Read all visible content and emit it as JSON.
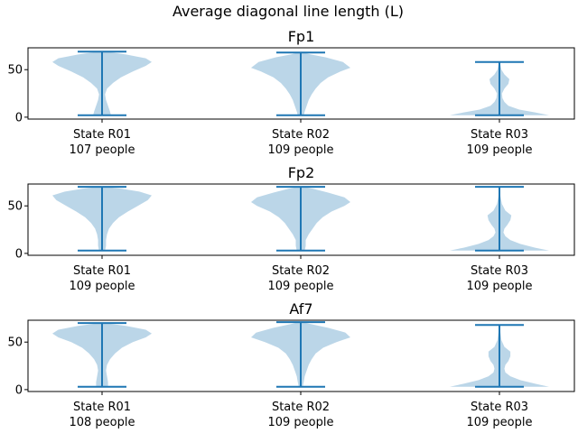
{
  "figure": {
    "title": "Average diagonal line length (L)"
  },
  "chart_data": [
    {
      "type": "violin",
      "title": "Fp1",
      "ylim": [
        -2,
        73
      ],
      "yticks": [
        0,
        50
      ],
      "categories": [
        {
          "line1": "State R01",
          "line2": "107 people",
          "min": 2,
          "max": 69,
          "density": [
            [
              2,
              0.18
            ],
            [
              6,
              0.16
            ],
            [
              12,
              0.12
            ],
            [
              18,
              0.08
            ],
            [
              24,
              0.06
            ],
            [
              30,
              0.1
            ],
            [
              36,
              0.22
            ],
            [
              42,
              0.38
            ],
            [
              48,
              0.62
            ],
            [
              54,
              0.88
            ],
            [
              58,
              1.0
            ],
            [
              62,
              0.88
            ],
            [
              66,
              0.48
            ],
            [
              69,
              0.08
            ]
          ]
        },
        {
          "line1": "State R02",
          "line2": "109 people",
          "min": 2,
          "max": 68,
          "density": [
            [
              2,
              0.06
            ],
            [
              6,
              0.08
            ],
            [
              12,
              0.12
            ],
            [
              18,
              0.16
            ],
            [
              24,
              0.22
            ],
            [
              30,
              0.3
            ],
            [
              36,
              0.4
            ],
            [
              42,
              0.55
            ],
            [
              48,
              0.8
            ],
            [
              52,
              1.0
            ],
            [
              58,
              0.85
            ],
            [
              63,
              0.5
            ],
            [
              66,
              0.2
            ],
            [
              68,
              0.05
            ]
          ]
        },
        {
          "line1": "State R03",
          "line2": "109 people",
          "min": 2,
          "max": 58,
          "density": [
            [
              2,
              1.0
            ],
            [
              5,
              0.72
            ],
            [
              8,
              0.4
            ],
            [
              12,
              0.18
            ],
            [
              16,
              0.1
            ],
            [
              20,
              0.06
            ],
            [
              25,
              0.05
            ],
            [
              30,
              0.1
            ],
            [
              35,
              0.18
            ],
            [
              40,
              0.2
            ],
            [
              45,
              0.1
            ],
            [
              50,
              0.04
            ],
            [
              55,
              0.02
            ],
            [
              58,
              0.01
            ]
          ]
        }
      ]
    },
    {
      "type": "violin",
      "title": "Fp2",
      "ylim": [
        -2,
        73
      ],
      "yticks": [
        0,
        50
      ],
      "categories": [
        {
          "line1": "State R01",
          "line2": "109 people",
          "min": 3,
          "max": 70,
          "density": [
            [
              3,
              0.06
            ],
            [
              8,
              0.08
            ],
            [
              14,
              0.08
            ],
            [
              20,
              0.1
            ],
            [
              26,
              0.14
            ],
            [
              32,
              0.22
            ],
            [
              38,
              0.34
            ],
            [
              44,
              0.52
            ],
            [
              50,
              0.72
            ],
            [
              56,
              0.92
            ],
            [
              61,
              1.0
            ],
            [
              65,
              0.75
            ],
            [
              68,
              0.4
            ],
            [
              70,
              0.08
            ]
          ]
        },
        {
          "line1": "State R02",
          "line2": "109 people",
          "min": 3,
          "max": 70,
          "density": [
            [
              3,
              0.08
            ],
            [
              8,
              0.1
            ],
            [
              14,
              0.1
            ],
            [
              20,
              0.16
            ],
            [
              26,
              0.24
            ],
            [
              32,
              0.32
            ],
            [
              38,
              0.44
            ],
            [
              44,
              0.62
            ],
            [
              50,
              0.88
            ],
            [
              54,
              1.0
            ],
            [
              59,
              0.88
            ],
            [
              64,
              0.55
            ],
            [
              68,
              0.25
            ],
            [
              70,
              0.06
            ]
          ]
        },
        {
          "line1": "State R03",
          "line2": "109 people",
          "min": 3,
          "max": 70,
          "density": [
            [
              3,
              1.0
            ],
            [
              6,
              0.72
            ],
            [
              10,
              0.42
            ],
            [
              14,
              0.22
            ],
            [
              18,
              0.12
            ],
            [
              22,
              0.08
            ],
            [
              26,
              0.1
            ],
            [
              30,
              0.16
            ],
            [
              35,
              0.22
            ],
            [
              40,
              0.24
            ],
            [
              45,
              0.12
            ],
            [
              52,
              0.05
            ],
            [
              60,
              0.02
            ],
            [
              70,
              0.01
            ]
          ]
        }
      ]
    },
    {
      "type": "violin",
      "title": "Af7",
      "ylim": [
        -2,
        73
      ],
      "yticks": [
        0,
        50
      ],
      "categories": [
        {
          "line1": "State R01",
          "line2": "108 people",
          "min": 3,
          "max": 70,
          "density": [
            [
              3,
              0.12
            ],
            [
              8,
              0.12
            ],
            [
              14,
              0.1
            ],
            [
              20,
              0.08
            ],
            [
              26,
              0.1
            ],
            [
              32,
              0.16
            ],
            [
              38,
              0.26
            ],
            [
              44,
              0.4
            ],
            [
              50,
              0.62
            ],
            [
              55,
              0.88
            ],
            [
              59,
              1.0
            ],
            [
              63,
              0.88
            ],
            [
              67,
              0.48
            ],
            [
              70,
              0.06
            ]
          ]
        },
        {
          "line1": "State R02",
          "line2": "109 people",
          "min": 3,
          "max": 71,
          "density": [
            [
              3,
              0.04
            ],
            [
              8,
              0.06
            ],
            [
              14,
              0.08
            ],
            [
              20,
              0.12
            ],
            [
              26,
              0.16
            ],
            [
              32,
              0.22
            ],
            [
              38,
              0.3
            ],
            [
              44,
              0.45
            ],
            [
              50,
              0.72
            ],
            [
              55,
              1.0
            ],
            [
              60,
              0.9
            ],
            [
              65,
              0.55
            ],
            [
              69,
              0.2
            ],
            [
              71,
              0.04
            ]
          ]
        },
        {
          "line1": "State R03",
          "line2": "109 people",
          "min": 3,
          "max": 68,
          "density": [
            [
              3,
              1.0
            ],
            [
              6,
              0.74
            ],
            [
              10,
              0.42
            ],
            [
              14,
              0.22
            ],
            [
              18,
              0.12
            ],
            [
              22,
              0.1
            ],
            [
              26,
              0.12
            ],
            [
              30,
              0.18
            ],
            [
              35,
              0.22
            ],
            [
              40,
              0.22
            ],
            [
              45,
              0.1
            ],
            [
              52,
              0.04
            ],
            [
              60,
              0.02
            ],
            [
              68,
              0.01
            ]
          ]
        }
      ]
    }
  ]
}
